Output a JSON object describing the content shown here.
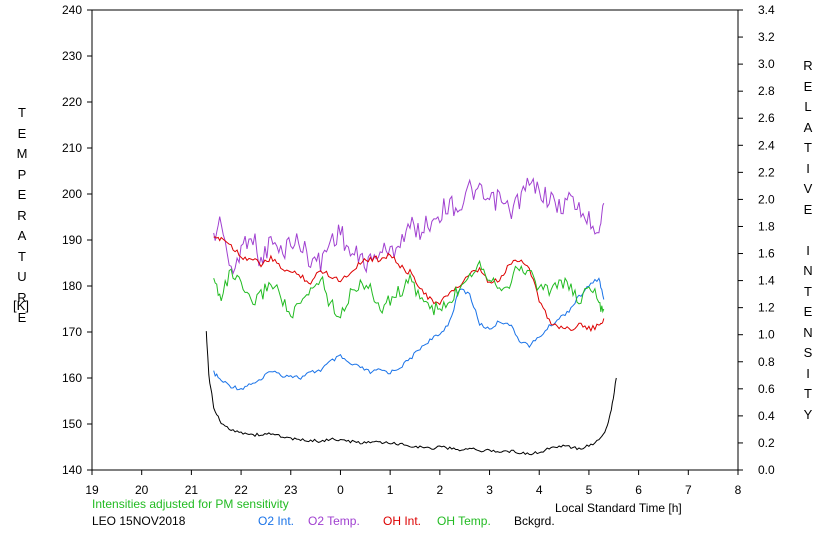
{
  "chart_data": {
    "type": "line",
    "xlabel": "Local Standard Time [h]",
    "ylabel_left": "TEMPERATURE",
    "ylabel_left_unit": "[K]",
    "ylabel_right": "RELATIVE INTENSITY",
    "x_ticks": [
      "19",
      "20",
      "21",
      "22",
      "23",
      "0",
      "1",
      "2",
      "3",
      "4",
      "5",
      "6",
      "7",
      "8"
    ],
    "xlim": [
      19,
      32
    ],
    "y_left_ticks": [
      "140",
      "150",
      "160",
      "170",
      "180",
      "190",
      "200",
      "210",
      "220",
      "230",
      "240"
    ],
    "ylim_left": [
      140,
      240
    ],
    "y_right_ticks": [
      "0.0",
      "0.2",
      "0.4",
      "0.6",
      "0.8",
      "1.0",
      "1.2",
      "1.4",
      "1.6",
      "1.8",
      "2.0",
      "2.2",
      "2.4",
      "2.6",
      "2.8",
      "3.0",
      "3.2",
      "3.4"
    ],
    "ylim_right": [
      0,
      3.4
    ],
    "note": "Intensities adjusted for PM sensitivity",
    "caption": "LEO 15NOV2018",
    "legend_position": "bottom",
    "series": [
      {
        "name": "O2 Int.",
        "color": "#1a73e8",
        "axis": "right",
        "x": [
          21.45,
          21.6,
          21.8,
          22.0,
          22.2,
          22.4,
          22.6,
          22.8,
          23.0,
          23.2,
          23.4,
          23.6,
          23.8,
          24.0,
          24.2,
          24.4,
          24.6,
          24.8,
          25.0,
          25.2,
          25.4,
          25.6,
          25.8,
          26.0,
          26.2,
          26.4,
          26.6,
          26.8,
          27.0,
          27.2,
          27.4,
          27.6,
          27.8,
          28.0,
          28.2,
          28.4,
          28.6,
          28.8,
          29.0,
          29.2,
          29.3
        ],
        "y": [
          0.72,
          0.66,
          0.62,
          0.6,
          0.64,
          0.66,
          0.74,
          0.7,
          0.7,
          0.68,
          0.72,
          0.74,
          0.8,
          0.84,
          0.78,
          0.76,
          0.72,
          0.74,
          0.72,
          0.76,
          0.82,
          0.9,
          0.96,
          1.0,
          1.1,
          1.34,
          1.3,
          1.08,
          1.04,
          1.1,
          1.08,
          0.96,
          0.92,
          0.98,
          1.06,
          1.12,
          1.18,
          1.28,
          1.36,
          1.42,
          1.26
        ]
      },
      {
        "name": "O2 Temp.",
        "color": "#a040d0",
        "axis": "left",
        "x": [
          21.45,
          21.6,
          21.8,
          22.0,
          22.2,
          22.4,
          22.6,
          22.8,
          23.0,
          23.2,
          23.4,
          23.6,
          23.8,
          24.0,
          24.2,
          24.4,
          24.6,
          24.8,
          25.0,
          25.2,
          25.4,
          25.6,
          25.8,
          26.0,
          26.2,
          26.4,
          26.6,
          26.8,
          27.0,
          27.2,
          27.4,
          27.6,
          27.8,
          28.0,
          28.2,
          28.4,
          28.6,
          28.8,
          29.0,
          29.2,
          29.3
        ],
        "y": [
          190,
          195,
          182,
          188,
          192,
          185,
          190,
          187,
          190,
          189,
          186,
          185,
          190,
          192,
          187,
          186,
          185,
          188,
          187,
          190,
          193,
          192,
          194,
          196,
          198,
          197,
          201,
          200,
          198,
          199,
          196,
          199,
          202,
          201,
          199,
          197,
          199,
          197,
          194,
          193,
          198
        ]
      },
      {
        "name": "OH Int.",
        "color": "#dd0000",
        "axis": "right",
        "x": [
          21.45,
          21.6,
          21.8,
          22.0,
          22.2,
          22.4,
          22.6,
          22.8,
          23.0,
          23.2,
          23.4,
          23.6,
          23.8,
          24.0,
          24.2,
          24.4,
          24.6,
          24.8,
          25.0,
          25.2,
          25.4,
          25.6,
          25.8,
          26.0,
          26.2,
          26.4,
          26.6,
          26.8,
          27.0,
          27.2,
          27.4,
          27.6,
          27.8,
          28.0,
          28.2,
          28.4,
          28.6,
          28.8,
          29.0,
          29.2,
          29.3
        ],
        "y": [
          1.7,
          1.72,
          1.66,
          1.58,
          1.56,
          1.52,
          1.56,
          1.5,
          1.46,
          1.44,
          1.38,
          1.48,
          1.44,
          1.4,
          1.46,
          1.54,
          1.56,
          1.56,
          1.6,
          1.5,
          1.46,
          1.36,
          1.26,
          1.22,
          1.32,
          1.36,
          1.44,
          1.48,
          1.38,
          1.4,
          1.52,
          1.56,
          1.5,
          1.26,
          1.1,
          1.06,
          1.04,
          1.08,
          1.04,
          1.06,
          1.12
        ]
      },
      {
        "name": "OH Temp.",
        "color": "#22bb22",
        "axis": "left",
        "x": [
          21.45,
          21.6,
          21.8,
          22.0,
          22.2,
          22.4,
          22.6,
          22.8,
          23.0,
          23.2,
          23.4,
          23.6,
          23.8,
          24.0,
          24.2,
          24.4,
          24.6,
          24.8,
          25.0,
          25.2,
          25.4,
          25.6,
          25.8,
          26.0,
          26.2,
          26.4,
          26.6,
          26.8,
          27.0,
          27.2,
          27.4,
          27.6,
          27.8,
          28.0,
          28.2,
          28.4,
          28.6,
          28.8,
          29.0,
          29.2,
          29.3
        ],
        "y": [
          181,
          178,
          183,
          180,
          176,
          178,
          181,
          178,
          173,
          176,
          179,
          182,
          176,
          174,
          178,
          181,
          179,
          175,
          177,
          179,
          181,
          178,
          175,
          175,
          176,
          180,
          183,
          185,
          182,
          180,
          181,
          184,
          183,
          180,
          179,
          181,
          180,
          176,
          181,
          176,
          175
        ]
      },
      {
        "name": "Bckgrd.",
        "color": "#000000",
        "axis": "right",
        "x": [
          21.3,
          21.35,
          21.45,
          21.6,
          21.8,
          22.0,
          22.2,
          22.4,
          22.6,
          22.8,
          23.0,
          23.2,
          23.4,
          23.6,
          23.8,
          24.0,
          24.2,
          24.4,
          24.6,
          24.8,
          25.0,
          25.2,
          25.4,
          25.6,
          25.8,
          26.0,
          26.2,
          26.4,
          26.6,
          26.8,
          27.0,
          27.2,
          27.4,
          27.6,
          27.8,
          28.0,
          28.2,
          28.4,
          28.6,
          28.8,
          29.0,
          29.2,
          29.35,
          29.45,
          29.55
        ],
        "y": [
          1.02,
          0.7,
          0.46,
          0.34,
          0.3,
          0.28,
          0.26,
          0.26,
          0.27,
          0.25,
          0.23,
          0.22,
          0.22,
          0.21,
          0.23,
          0.22,
          0.21,
          0.2,
          0.21,
          0.2,
          0.2,
          0.19,
          0.18,
          0.17,
          0.16,
          0.17,
          0.16,
          0.15,
          0.16,
          0.14,
          0.15,
          0.13,
          0.14,
          0.13,
          0.12,
          0.13,
          0.16,
          0.18,
          0.17,
          0.16,
          0.18,
          0.22,
          0.3,
          0.44,
          0.68
        ]
      }
    ]
  }
}
